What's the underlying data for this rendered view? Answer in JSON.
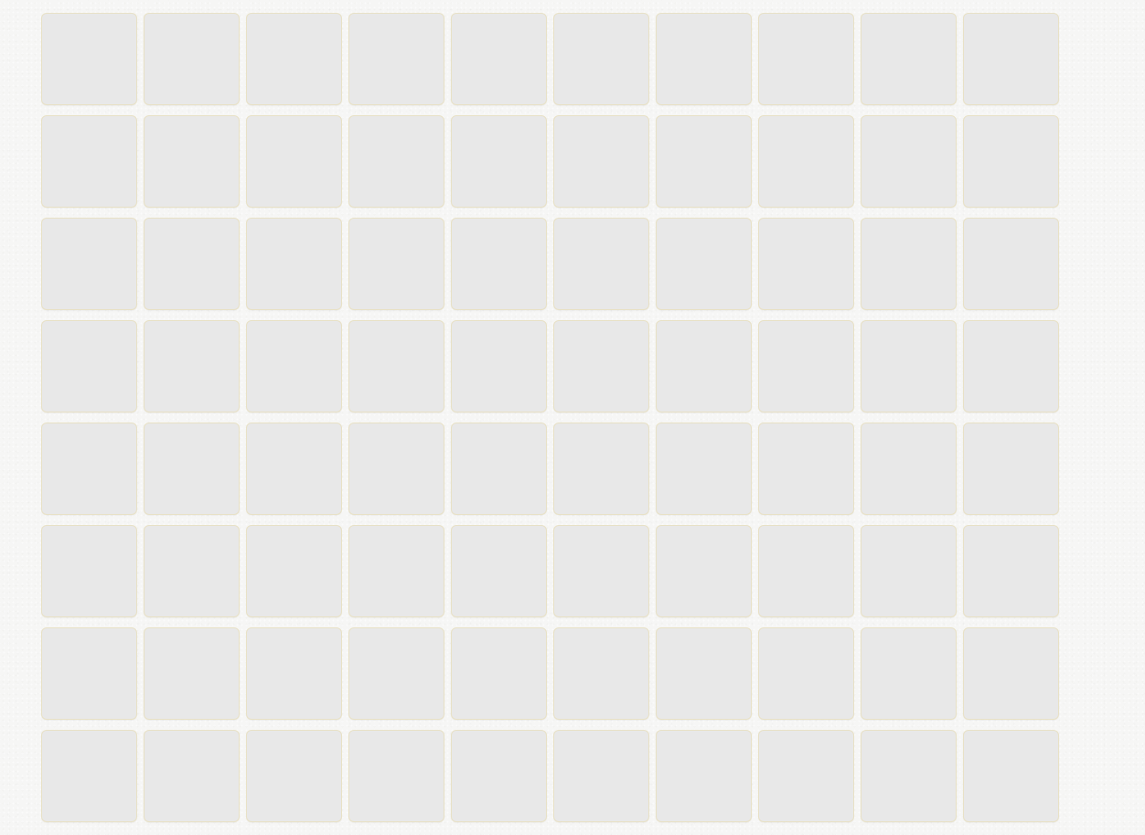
{
  "board": {
    "rows": 8,
    "columns": 10,
    "tile_state": "face-down",
    "colors": {
      "tile_face": "#e8e8e8",
      "tile_border": "#e8e1c6",
      "background": "#f6f6f5"
    }
  }
}
